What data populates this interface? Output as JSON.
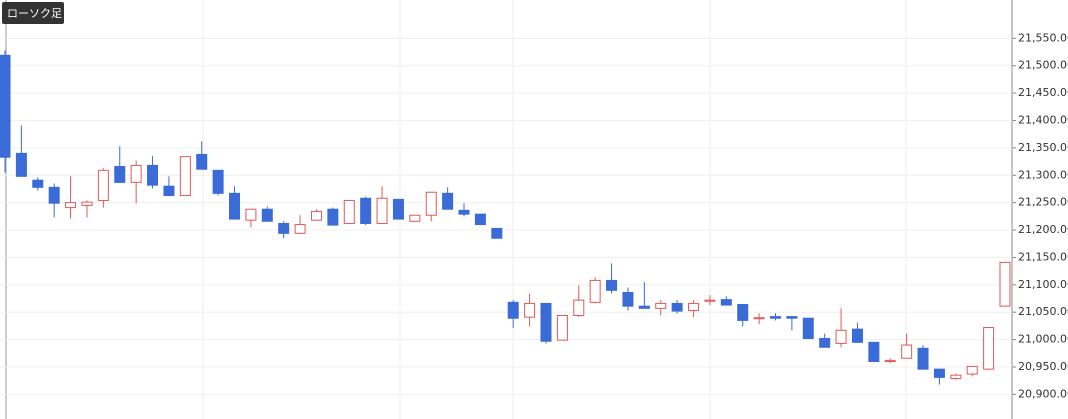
{
  "chart_data": {
    "type": "candlestick",
    "series": [
      {
        "name": "ローソク足",
        "up_color": "#e05a5a",
        "down_color": "#3a6bd6",
        "open": [
          21519,
          21340,
          21291,
          21278,
          21241,
          21245,
          21254,
          21316,
          21287,
          21318,
          21280,
          21263,
          21338,
          21309,
          21267,
          21218,
          21238,
          21212,
          21194,
          21218,
          21238,
          21212,
          21258,
          21212,
          21256,
          21216,
          21227,
          21267,
          21236,
          21229,
          21203,
          21068,
          21041,
          21066,
          20999,
          21044,
          21068,
          21108,
          21086,
          21061,
          21057,
          21066,
          21053,
          21070,
          21073,
          21064,
          21038,
          21042,
          21042,
          21039,
          21002,
          20993,
          21019,
          20995,
          20960,
          20966,
          20984,
          20946,
          20929,
          20937,
          20946,
          21061
        ],
        "high": [
          21528,
          21391,
          21296,
          21285,
          21298,
          21254,
          21313,
          21353,
          21327,
          21335,
          21298,
          21334,
          21362,
          21309,
          21280,
          21238,
          21243,
          21216,
          21227,
          21238,
          21241,
          21254,
          21261,
          21280,
          21256,
          21227,
          21269,
          21278,
          21249,
          21229,
          21203,
          21072,
          21084,
          21066,
          21044,
          21099,
          21114,
          21139,
          21095,
          21105,
          21072,
          21072,
          21072,
          21081,
          21079,
          21064,
          21048,
          21048,
          21042,
          21039,
          21011,
          21057,
          21031,
          20995,
          20966,
          21011,
          20990,
          20946,
          20938,
          20951,
          21022,
          21141
        ],
        "low": [
          21305,
          21298,
          21272,
          21223,
          21221,
          21223,
          21241,
          21287,
          21249,
          21276,
          21263,
          21263,
          21311,
          21263,
          21220,
          21205,
          21216,
          21185,
          21194,
          21218,
          21209,
          21212,
          21209,
          21212,
          21220,
          21216,
          21216,
          21238,
          21225,
          21209,
          21185,
          21021,
          21024,
          20993,
          20999,
          21041,
          21066,
          21084,
          21053,
          21057,
          21044,
          21048,
          21041,
          21063,
          21063,
          21024,
          21028,
          21035,
          21017,
          21002,
          20986,
          20986,
          20995,
          20960,
          20957,
          20966,
          20946,
          20918,
          20926,
          20933,
          20946,
          21061
        ],
        "close": [
          21333,
          21298,
          21278,
          21249,
          21250,
          21251,
          21309,
          21287,
          21318,
          21282,
          21263,
          21334,
          21311,
          21267,
          21220,
          21238,
          21216,
          21194,
          21210,
          21234,
          21209,
          21254,
          21212,
          21258,
          21220,
          21227,
          21269,
          21238,
          21229,
          21210,
          21185,
          21039,
          21066,
          20997,
          21044,
          21072,
          21108,
          21090,
          21061,
          21057,
          21066,
          21052,
          21066,
          21072,
          21063,
          21035,
          21040,
          21039,
          21039,
          21002,
          20986,
          21017,
          20995,
          20960,
          20962,
          20990,
          20946,
          20931,
          20935,
          20951,
          21022,
          21141
        ]
      }
    ],
    "ylim": [
      20855,
      21620
    ],
    "yticks": [
      {
        "value": 20900,
        "label": "20,900.00"
      },
      {
        "value": 20950,
        "label": "20,950.00"
      },
      {
        "value": 21000,
        "label": "21,000.00"
      },
      {
        "value": 21050,
        "label": "21,050.00"
      },
      {
        "value": 21100,
        "label": "21,100.00"
      },
      {
        "value": 21150,
        "label": "21,150.00"
      },
      {
        "value": 21200,
        "label": "21,200.00"
      },
      {
        "value": 21250,
        "label": "21,250.00"
      },
      {
        "value": 21300,
        "label": "21,300.00"
      },
      {
        "value": 21350,
        "label": "21,350.00"
      },
      {
        "value": 21400,
        "label": "21,400.00"
      },
      {
        "value": 21450,
        "label": "21,450.00"
      },
      {
        "value": 21500,
        "label": "21,500.00"
      },
      {
        "value": 21550,
        "label": "21,550.00"
      }
    ],
    "grid": true
  }
}
